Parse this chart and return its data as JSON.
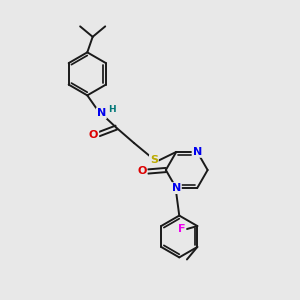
{
  "background_color": "#e8e8e8",
  "bond_color": "#1a1a1a",
  "atom_colors": {
    "N": "#0000ee",
    "O": "#dd0000",
    "S": "#bbaa00",
    "F": "#ee00ee",
    "H": "#007777",
    "C": "#1a1a1a"
  },
  "figsize": [
    3.0,
    3.0
  ],
  "dpi": 100
}
